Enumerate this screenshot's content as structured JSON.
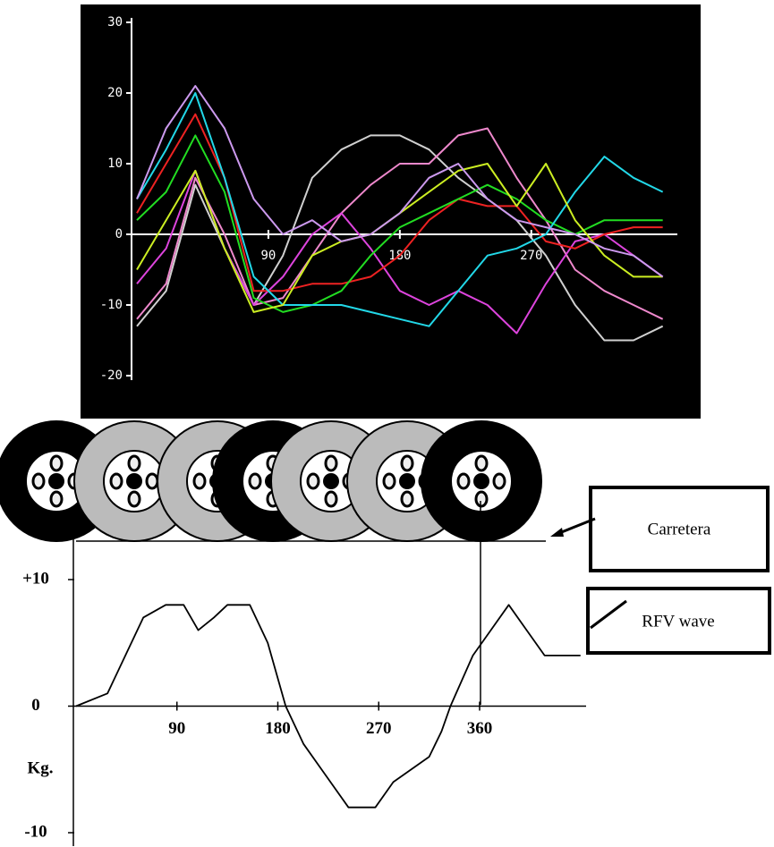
{
  "chart_data": [
    {
      "type": "line",
      "x": [
        0,
        20,
        40,
        60,
        80,
        100,
        120,
        140,
        160,
        180,
        200,
        220,
        240,
        260,
        280,
        300,
        320,
        340,
        360
      ],
      "xlim": [
        0,
        370
      ],
      "ylim": [
        -20,
        30
      ],
      "xticks": [
        90,
        180,
        270
      ],
      "yticks": [
        30,
        20,
        10,
        0,
        -10,
        -20
      ],
      "series": [
        {
          "color": "#d0d0d0",
          "values": [
            -13,
            -8,
            7,
            -2,
            -10,
            -3,
            8,
            12,
            14,
            14,
            12,
            8,
            5,
            2,
            -3,
            -10,
            -15,
            -15,
            -13
          ]
        },
        {
          "color": "#ee88cc",
          "values": [
            -12,
            -7,
            8,
            0,
            -10,
            -9,
            -3,
            3,
            7,
            10,
            10,
            14,
            15,
            8,
            2,
            -5,
            -8,
            -10,
            -12
          ]
        },
        {
          "color": "#dd44dd",
          "values": [
            -7,
            -2,
            9,
            -2,
            -10,
            -6,
            0,
            3,
            -2,
            -8,
            -10,
            -8,
            -10,
            -14,
            -7,
            -1,
            0,
            -3,
            -6
          ]
        },
        {
          "color": "#ee2222",
          "values": [
            3,
            10,
            17,
            8,
            -8,
            -8,
            -7,
            -7,
            -6,
            -3,
            2,
            5,
            4,
            4,
            -1,
            -2,
            0,
            1,
            1
          ]
        },
        {
          "color": "#22dd22",
          "values": [
            2,
            6,
            14,
            6,
            -9,
            -11,
            -10,
            -8,
            -3,
            1,
            3,
            5,
            7,
            5,
            2,
            0,
            2,
            2,
            2
          ]
        },
        {
          "color": "#22d8e8",
          "values": [
            5,
            12,
            20,
            8,
            -6,
            -10,
            -10,
            -10,
            -11,
            -12,
            -13,
            -8,
            -3,
            -2,
            0,
            6,
            11,
            8,
            6
          ]
        },
        {
          "color": "#ccee22",
          "values": [
            -5,
            2,
            9,
            -2,
            -11,
            -10,
            -3,
            -1,
            0,
            3,
            6,
            9,
            10,
            4,
            10,
            2,
            -3,
            -6,
            -6
          ]
        },
        {
          "color": "#cc99ee",
          "values": [
            5,
            15,
            21,
            15,
            5,
            0,
            2,
            -1,
            0,
            3,
            8,
            10,
            5,
            2,
            1,
            0,
            -2,
            -3,
            -6
          ]
        }
      ]
    },
    {
      "type": "line",
      "x": [
        0,
        28,
        44,
        60,
        80,
        96,
        109,
        123,
        135,
        155,
        171,
        187,
        203,
        219,
        243,
        267,
        283,
        315,
        326,
        334,
        354,
        370,
        386,
        402,
        418,
        450
      ],
      "values": [
        0,
        1,
        4,
        7,
        8,
        8,
        6,
        7,
        8,
        8,
        5,
        0,
        -3,
        -5,
        -8,
        -8,
        -6,
        -4,
        -2,
        0,
        4,
        6,
        8,
        6,
        4,
        4
      ],
      "color": "#000000",
      "xlim": [
        0,
        455
      ],
      "ylim": [
        -10,
        10
      ],
      "xticks": [
        90,
        180,
        270,
        360
      ],
      "yticks": [
        {
          "value": 10,
          "label": "+10"
        },
        0,
        -10
      ],
      "ylabel": "Kg.",
      "annotations": [
        "Carretera",
        "RFV wave"
      ]
    }
  ]
}
